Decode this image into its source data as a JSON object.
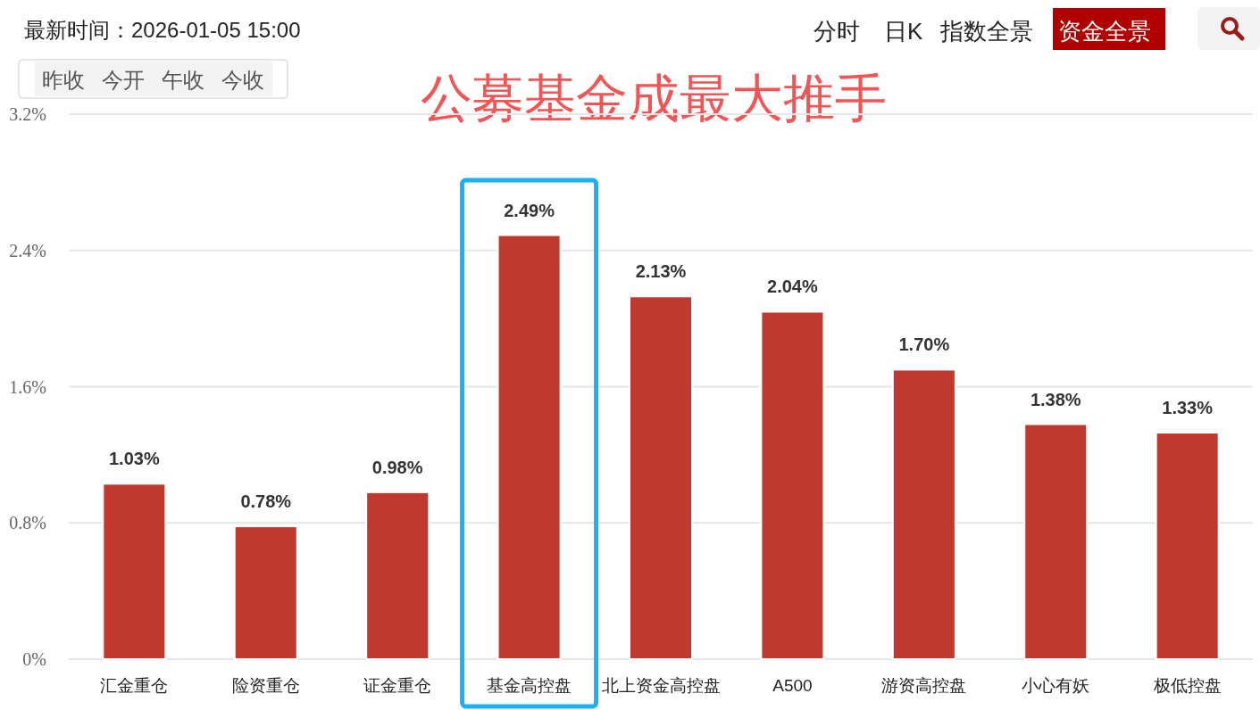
{
  "chart_data": {
    "type": "bar",
    "title": "公募基金成最大推手",
    "categories": [
      "汇金重仓",
      "险资重仓",
      "证金重仓",
      "基金高控盘",
      "北上资金高控盘",
      "A500",
      "游资高控盘",
      "小心有妖",
      "极低控盘"
    ],
    "values": [
      1.03,
      0.78,
      0.98,
      2.49,
      2.13,
      2.04,
      1.7,
      1.38,
      1.33
    ],
    "value_labels": [
      "1.03%",
      "0.78%",
      "0.98%",
      "2.49%",
      "2.13%",
      "2.04%",
      "1.70%",
      "1.38%",
      "1.33%"
    ],
    "color": "#c0392f",
    "ylim": [
      0,
      3.2
    ],
    "yticks": [
      {
        "value": 0,
        "label": "0%"
      },
      {
        "value": 0.8,
        "label": "0.8%"
      },
      {
        "value": 1.6,
        "label": "1.6%"
      },
      {
        "value": 2.4,
        "label": "2.4%"
      },
      {
        "value": 3.2,
        "label": "3.2%"
      }
    ],
    "grid": "y",
    "annotations": [
      "最新时间：2026-01-05 15:00",
      "昨收",
      "今开",
      "午收",
      "今收",
      "分时",
      "日K",
      "指数全景",
      "资金全景"
    ]
  }
}
